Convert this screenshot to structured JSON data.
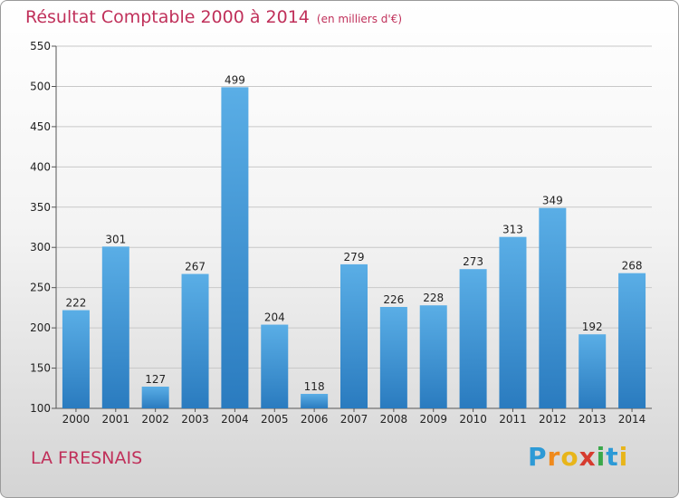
{
  "chart_data": {
    "type": "bar",
    "title": "Résultat Comptable 2000 à 2014",
    "subtitle": "(en milliers d'€)",
    "categories": [
      "2000",
      "2001",
      "2002",
      "2003",
      "2004",
      "2005",
      "2006",
      "2007",
      "2008",
      "2009",
      "2010",
      "2011",
      "2012",
      "2013",
      "2014"
    ],
    "values": [
      222,
      301,
      127,
      267,
      499,
      204,
      118,
      279,
      226,
      228,
      273,
      313,
      349,
      192,
      268
    ],
    "yticks": [
      100,
      150,
      200,
      250,
      300,
      350,
      400,
      450,
      500,
      550
    ],
    "ylim": [
      100,
      550
    ],
    "xlabel": "",
    "ylabel": "",
    "grid": true
  },
  "footer": {
    "commune": "LA FRESNAIS",
    "logo_letters": [
      "P",
      "r",
      "o",
      "x",
      "i",
      "t",
      "i"
    ]
  },
  "colors": {
    "title": "#c0305a",
    "bar_top": "#5aaee6",
    "bar_bottom": "#2a7bbf",
    "logo": [
      "#2d9ad6",
      "#f08a1c",
      "#e8b51a",
      "#d63b2f",
      "#3aa84a",
      "#2d9ad6",
      "#e8b51a"
    ]
  }
}
